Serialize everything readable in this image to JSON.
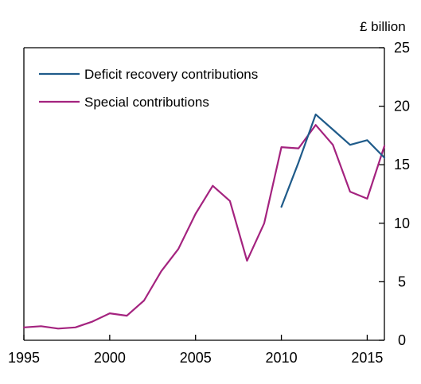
{
  "chart_data": {
    "type": "line",
    "unit_label": "£ billion",
    "xlim": [
      1995,
      2016
    ],
    "ylim": [
      0,
      25
    ],
    "x_ticks": [
      1995,
      2000,
      2005,
      2010,
      2015
    ],
    "y_ticks": [
      0,
      5,
      10,
      15,
      20,
      25
    ],
    "grid": false,
    "legend_position": "top-left",
    "series": [
      {
        "name": "Deficit recovery contributions",
        "color": "#1f5b8a",
        "x": [
          2010,
          2011,
          2012,
          2013,
          2014,
          2015,
          2016
        ],
        "y": [
          11.4,
          15.2,
          19.3,
          18.0,
          16.7,
          17.1,
          15.6
        ]
      },
      {
        "name": "Special contributions",
        "color": "#a4237f",
        "x": [
          1995,
          1996,
          1997,
          1998,
          1999,
          2000,
          2001,
          2002,
          2003,
          2004,
          2005,
          2006,
          2007,
          2008,
          2009,
          2010,
          2011,
          2012,
          2013,
          2014,
          2015,
          2016
        ],
        "y": [
          1.1,
          1.2,
          1.0,
          1.1,
          1.6,
          2.3,
          2.1,
          3.4,
          5.9,
          7.8,
          10.8,
          13.2,
          11.9,
          6.8,
          10.0,
          16.5,
          16.4,
          18.4,
          16.7,
          12.7,
          12.1,
          16.6
        ]
      }
    ]
  }
}
